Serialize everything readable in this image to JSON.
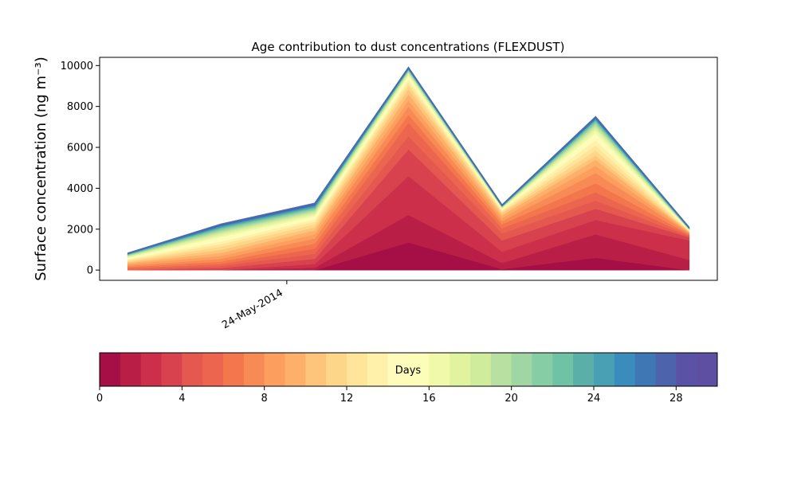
{
  "chart_data": {
    "type": "area",
    "stacked": true,
    "title": "Age contribution to dust concentrations (FLEXDUST)",
    "ylabel": "Surface concentration (ng m⁻³)",
    "xlabel": "",
    "ylim": [
      -500,
      10400
    ],
    "yticks": [
      0,
      2000,
      4000,
      6000,
      8000,
      10000
    ],
    "x_index_range": [
      -0.3,
      6.3
    ],
    "x": [
      0,
      1,
      2,
      3,
      4,
      5,
      6
    ],
    "xtick_positions": [
      1.7
    ],
    "xtick_labels": [
      "24-May-2014"
    ],
    "cumulative_totals_by_band": [
      [
        0,
        0,
        0,
        1350,
        50,
        600,
        0
      ],
      [
        0,
        0,
        120,
        2700,
        350,
        1750,
        500
      ],
      [
        0,
        0,
        300,
        4600,
        900,
        2450,
        1450
      ],
      [
        0,
        100,
        550,
        5900,
        1450,
        3000,
        1600
      ],
      [
        0,
        200,
        800,
        6550,
        1800,
        3400,
        1650
      ],
      [
        80,
        300,
        1050,
        7200,
        2050,
        3800,
        1700
      ],
      [
        150,
        420,
        1300,
        7600,
        2250,
        4250,
        1750
      ],
      [
        220,
        550,
        1550,
        8000,
        2400,
        4750,
        1800
      ],
      [
        290,
        700,
        1750,
        8300,
        2550,
        5100,
        1830
      ],
      [
        350,
        850,
        1950,
        8600,
        2680,
        5400,
        1860
      ],
      [
        400,
        1000,
        2100,
        8850,
        2780,
        5600,
        1880
      ],
      [
        450,
        1150,
        2250,
        9050,
        2850,
        5850,
        1900
      ],
      [
        490,
        1280,
        2380,
        9200,
        2900,
        6100,
        1920
      ],
      [
        530,
        1400,
        2480,
        9320,
        2950,
        6350,
        1935
      ],
      [
        570,
        1520,
        2560,
        9420,
        2980,
        6550,
        1950
      ],
      [
        610,
        1620,
        2640,
        9500,
        3010,
        6700,
        1960
      ],
      [
        640,
        1710,
        2720,
        9570,
        3030,
        6850,
        1970
      ],
      [
        670,
        1790,
        2790,
        9630,
        3050,
        6950,
        1980
      ],
      [
        695,
        1860,
        2860,
        9680,
        3070,
        7050,
        1990
      ],
      [
        715,
        1920,
        2920,
        9720,
        3085,
        7130,
        2000
      ],
      [
        735,
        1980,
        2970,
        9750,
        3100,
        7200,
        2010
      ],
      [
        750,
        2030,
        3020,
        9780,
        3110,
        7260,
        2020
      ],
      [
        765,
        2070,
        3060,
        9800,
        3120,
        7310,
        2030
      ],
      [
        775,
        2110,
        3100,
        9820,
        3130,
        7350,
        2040
      ],
      [
        785,
        2140,
        3140,
        9840,
        3140,
        7380,
        2045
      ],
      [
        795,
        2170,
        3170,
        9850,
        3150,
        7410,
        2050
      ],
      [
        802,
        2190,
        3200,
        9860,
        3155,
        7430,
        2055
      ],
      [
        808,
        2210,
        3220,
        9870,
        3160,
        7450,
        2060
      ],
      [
        812,
        2225,
        3240,
        9880,
        3165,
        7465,
        2065
      ],
      [
        816,
        2240,
        3255,
        9890,
        3170,
        7480,
        2070
      ]
    ],
    "colorbar": {
      "label": "Days",
      "range": [
        0,
        30
      ],
      "ticks": [
        0,
        4,
        8,
        12,
        16,
        20,
        24,
        28
      ],
      "colormap": "Spectral",
      "colors": [
        "#a50f45",
        "#b91e47",
        "#cb2f4a",
        "#d8414e",
        "#e55850",
        "#ec654e",
        "#f4764c",
        "#f88b55",
        "#fb9e5e",
        "#fdb06a",
        "#fdc57b",
        "#fed68a",
        "#fee59a",
        "#fff0aa",
        "#fffbba",
        "#fbfdb8",
        "#f0f9a9",
        "#e1f39e",
        "#cfec9d",
        "#b8e1a1",
        "#a0d6a4",
        "#86cda5",
        "#6fc2a4",
        "#5aafa8",
        "#48a0b2",
        "#3a8cbd",
        "#3f77b5",
        "#4d63ac",
        "#5a52a4",
        "#5e4fa2"
      ]
    }
  }
}
